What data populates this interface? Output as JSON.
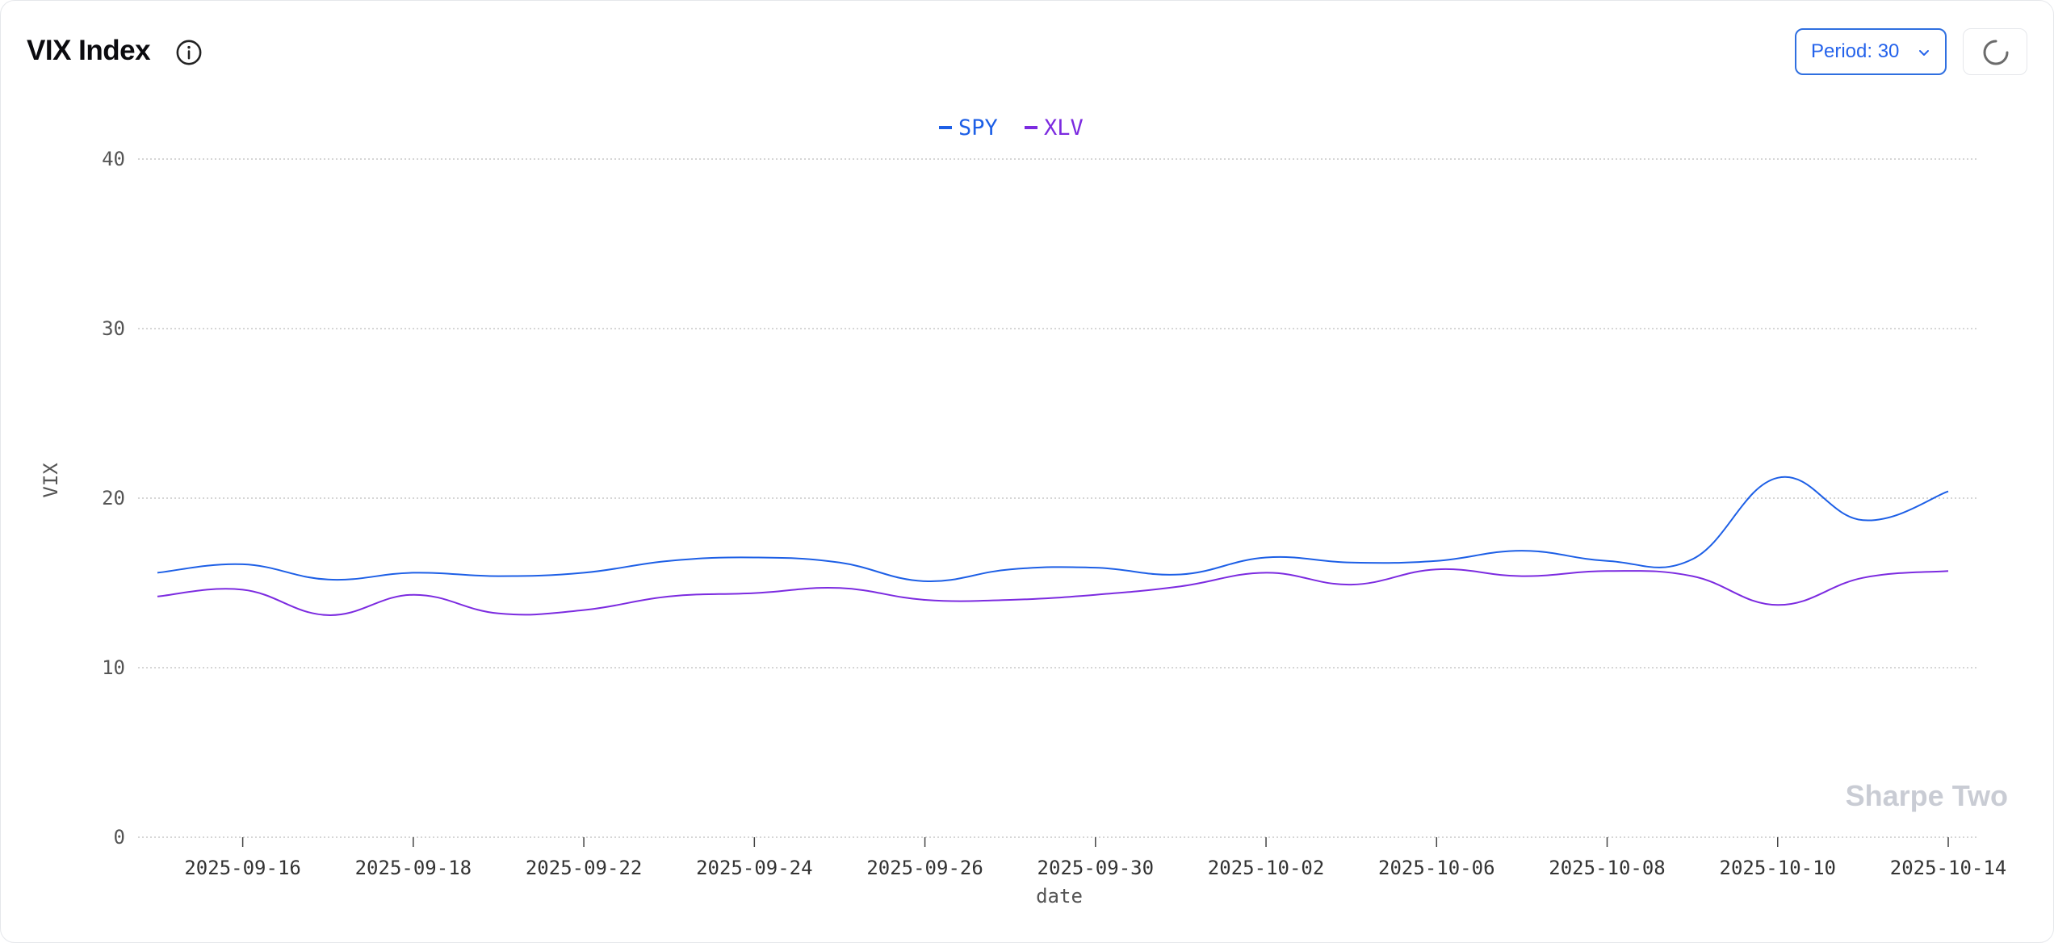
{
  "header": {
    "title": "VIX Index",
    "info_icon": "info-circle-icon",
    "period_label": "Period: 30",
    "period_chevron_icon": "chevron-down-icon",
    "refresh_icon": "loading-spinner-icon"
  },
  "watermark": "Sharpe Two",
  "colors": {
    "SPY": "#1d5fe6",
    "XLV": "#7c2be0",
    "accent": "#2563eb",
    "grid": "#c8c8c8",
    "axis_text": "#555555",
    "watermark": "#c9ccd4"
  },
  "chart_data": {
    "type": "line",
    "title": "",
    "xlabel": "date",
    "ylabel": "VIX",
    "ylim": [
      0,
      40
    ],
    "yticks": [
      0,
      10,
      20,
      30,
      40
    ],
    "grid": true,
    "legend_placement": "top-center",
    "x": [
      "2025-09-15",
      "2025-09-16",
      "2025-09-17",
      "2025-09-18",
      "2025-09-19",
      "2025-09-22",
      "2025-09-23",
      "2025-09-24",
      "2025-09-25",
      "2025-09-26",
      "2025-09-29",
      "2025-09-30",
      "2025-10-01",
      "2025-10-02",
      "2025-10-03",
      "2025-10-06",
      "2025-10-07",
      "2025-10-08",
      "2025-10-09",
      "2025-10-10",
      "2025-10-13",
      "2025-10-14"
    ],
    "x_tick_labels": [
      "2025-09-16",
      "2025-09-18",
      "2025-09-22",
      "2025-09-24",
      "2025-09-26",
      "2025-09-30",
      "2025-10-02",
      "2025-10-06",
      "2025-10-08",
      "2025-10-10",
      "2025-10-14"
    ],
    "series": [
      {
        "name": "SPY",
        "values": [
          15.6,
          16.1,
          15.2,
          15.6,
          15.4,
          15.6,
          16.3,
          16.5,
          16.2,
          15.1,
          15.8,
          15.9,
          15.5,
          16.5,
          16.2,
          16.3,
          16.9,
          16.3,
          16.4,
          21.2,
          18.7,
          20.4
        ]
      },
      {
        "name": "XLV",
        "values": [
          14.2,
          14.6,
          13.1,
          14.3,
          13.2,
          13.4,
          14.2,
          14.4,
          14.7,
          14.0,
          14.0,
          14.3,
          14.8,
          15.6,
          14.9,
          15.8,
          15.4,
          15.7,
          15.4,
          13.7,
          15.3,
          15.7
        ]
      }
    ]
  }
}
